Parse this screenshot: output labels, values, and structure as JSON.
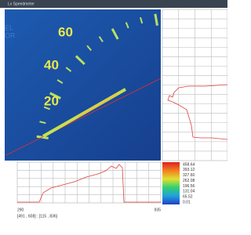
{
  "window": {
    "title": "Lv  Speedmeter"
  },
  "image": {
    "dial_labels": [
      "60",
      "40",
      "20"
    ],
    "partial_text": [
      "EL",
      "OR"
    ]
  },
  "colorbar": {
    "labels": [
      "458.64",
      "393.12",
      "327.60",
      "262.08",
      "196.56",
      "131.04",
      "65.52",
      "0.01"
    ]
  },
  "axis": {
    "start": "290",
    "end": "935"
  },
  "status": "[491 , 608] : [115 , 836]"
}
